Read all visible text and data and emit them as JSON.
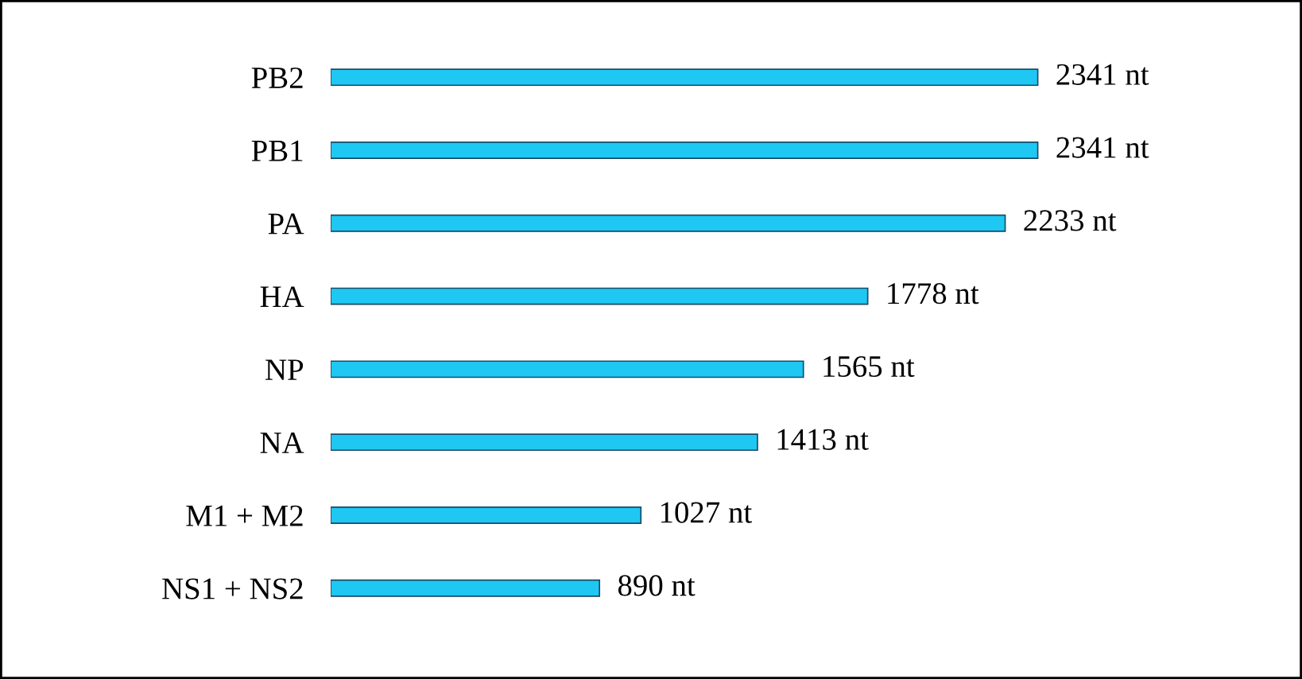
{
  "chart_data": {
    "type": "bar",
    "orientation": "horizontal",
    "categories": [
      "PB2",
      "PB1",
      "PA",
      "HA",
      "NP",
      "NA",
      "M1 + M2",
      "NS1 + NS2"
    ],
    "values": [
      2341,
      2341,
      2233,
      1778,
      1565,
      1413,
      1027,
      890
    ],
    "value_labels": [
      "2341 nt",
      "2341 nt",
      "2233 nt",
      "1778 nt",
      "1565 nt",
      "1413 nt",
      "1027 nt",
      "890 nt"
    ],
    "color": "#1ec8f2"
  }
}
